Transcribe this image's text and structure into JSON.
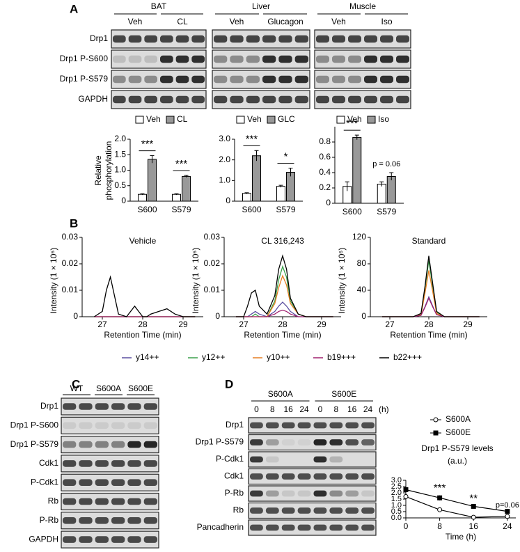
{
  "panel_labels": [
    "A",
    "B",
    "C",
    "D"
  ],
  "panel_a": {
    "blot": {
      "tissues": [
        {
          "name": "BAT",
          "conditions": [
            "Veh",
            "CL"
          ]
        },
        {
          "name": "Liver",
          "conditions": [
            "Veh",
            "Glucagon"
          ]
        },
        {
          "name": "Muscle",
          "conditions": [
            "Veh",
            "Iso"
          ]
        }
      ],
      "rows": [
        "Drp1",
        "Drp1 P-S600",
        "Drp1 P-S579",
        "GAPDH"
      ]
    },
    "y_label": "Relative phosphorylation",
    "charts": [
      {
        "type": "bar",
        "categories": [
          "S600",
          "S579"
        ],
        "series": [
          {
            "name": "Veh",
            "color": "#ffffff",
            "values": [
              0.22,
              0.22
            ],
            "errors": [
              0.02,
              0.02
            ]
          },
          {
            "name": "CL",
            "color": "#999999",
            "values": [
              1.35,
              0.8
            ],
            "errors": [
              0.12,
              0.03
            ]
          }
        ],
        "ylim": [
          0,
          2
        ],
        "yticks": [
          0,
          0.5,
          {
            "value": 1,
            "label": "1.0"
          },
          1.5,
          {
            "value": 2,
            "label": "2.0"
          }
        ],
        "annotations": [
          "***",
          "***"
        ]
      },
      {
        "type": "bar",
        "categories": [
          "S600",
          "S579"
        ],
        "series": [
          {
            "name": "Veh",
            "color": "#ffffff",
            "values": [
              0.38,
              0.72
            ],
            "errors": [
              0.03,
              0.05
            ]
          },
          {
            "name": "GLC",
            "color": "#999999",
            "values": [
              2.2,
              1.4
            ],
            "errors": [
              0.25,
              0.2
            ]
          }
        ],
        "ylim": [
          0,
          3
        ],
        "yticks": [
          0,
          {
            "value": 1,
            "label": "1.0"
          },
          {
            "value": 2,
            "label": "2.0"
          },
          {
            "value": 3,
            "label": "3.0"
          }
        ],
        "annotations": [
          "***",
          "*"
        ]
      },
      {
        "type": "bar",
        "categories": [
          "S600",
          "S579"
        ],
        "series": [
          {
            "name": "Veh",
            "color": "#ffffff",
            "values": [
              0.22,
              0.25
            ],
            "errors": [
              0.06,
              0.03
            ]
          },
          {
            "name": "Iso",
            "color": "#999999",
            "values": [
              0.86,
              0.35
            ],
            "errors": [
              0.03,
              0.05
            ]
          }
        ],
        "ylim": [
          0,
          1
        ],
        "yticks": [
          0,
          0.2,
          0.4,
          0.6,
          0.8
        ],
        "annotations": [
          "***",
          "p = 0.06"
        ]
      }
    ]
  },
  "panel_b": {
    "type": "line",
    "x_label": "Retention Time (min)",
    "y_label": "Intensity (1 × 10⁶)",
    "legend": [
      {
        "name": "y14++",
        "color": "#5b4ea0"
      },
      {
        "name": "y12++",
        "color": "#3aa04a"
      },
      {
        "name": "y10++",
        "color": "#e67e22"
      },
      {
        "name": "b19+++",
        "color": "#a0206e"
      },
      {
        "name": "b22+++",
        "color": "#000000"
      }
    ],
    "x": [
      26.8,
      27.0,
      27.1,
      27.2,
      27.3,
      27.4,
      27.6,
      27.8,
      27.9,
      28.0,
      28.1,
      28.2,
      28.4,
      28.6,
      28.8,
      29.0,
      29.3
    ],
    "xlim": [
      26.5,
      29.5
    ],
    "xticks": [
      27,
      28,
      29
    ],
    "charts": [
      {
        "title": "Vehicle",
        "ylim": [
          0,
          0.03
        ],
        "yticks": [
          0,
          0.01,
          0.02,
          0.03
        ],
        "values": [
          [
            0,
            0,
            0,
            0,
            0,
            0,
            0,
            0,
            0,
            0,
            0,
            0,
            0,
            0,
            0,
            0,
            0
          ],
          [
            0,
            0,
            0,
            0,
            0,
            0,
            0,
            0,
            0,
            0,
            0,
            0,
            0,
            0,
            0,
            0,
            0
          ],
          [
            0,
            0,
            0,
            0,
            0,
            0,
            0,
            0,
            0,
            0,
            0,
            0,
            0,
            0,
            0,
            0,
            0
          ],
          [
            0,
            0,
            0,
            0,
            0,
            0,
            0,
            0,
            0,
            0,
            0,
            0,
            0,
            0,
            0,
            0,
            0
          ],
          [
            0,
            0.002,
            0.01,
            0.015,
            0.008,
            0.001,
            0,
            0.004,
            0.002,
            0,
            0,
            0.001,
            0.002,
            0.003,
            0.001,
            0,
            0
          ]
        ]
      },
      {
        "title": "CL 316,243",
        "ylim": [
          0,
          0.03
        ],
        "yticks": [
          0,
          0.01,
          0.02,
          0.03
        ],
        "values": [
          [
            0,
            0,
            0,
            0.001,
            0.002,
            0.001,
            0,
            0.002,
            0.004,
            0.0055,
            0.004,
            0.002,
            0,
            0,
            0,
            0,
            0
          ],
          [
            0,
            0,
            0,
            0,
            0.001,
            0,
            0,
            0.006,
            0.014,
            0.019,
            0.015,
            0.006,
            0.001,
            0,
            0,
            0,
            0
          ],
          [
            0,
            0,
            0,
            0,
            0,
            0,
            0,
            0.005,
            0.011,
            0.0155,
            0.012,
            0.005,
            0.001,
            0,
            0,
            0,
            0
          ],
          [
            0,
            0,
            0,
            0,
            0,
            0,
            0,
            0.001,
            0.002,
            0.0025,
            0.002,
            0.001,
            0,
            0,
            0,
            0,
            0
          ],
          [
            0,
            0,
            0.004,
            0.009,
            0.01,
            0.004,
            0.001,
            0.008,
            0.018,
            0.023,
            0.018,
            0.007,
            0.001,
            0,
            0,
            0,
            0
          ]
        ]
      },
      {
        "title": "Standard",
        "ylim": [
          0,
          120
        ],
        "yticks": [
          0,
          40,
          80,
          120
        ],
        "values": [
          [
            0,
            0,
            0,
            0,
            0,
            0,
            0,
            2,
            15,
            30,
            16,
            3,
            0,
            0,
            0,
            0,
            0
          ],
          [
            0,
            0,
            0,
            0,
            0,
            0,
            0,
            4,
            42,
            85,
            46,
            7,
            0,
            0,
            0,
            0,
            0
          ],
          [
            0,
            0,
            0,
            0,
            0,
            0,
            0,
            3,
            35,
            70,
            38,
            5,
            0,
            0,
            0,
            0,
            0
          ],
          [
            0,
            0,
            0,
            0,
            0,
            0,
            0,
            2,
            14,
            28,
            15,
            3,
            0,
            0,
            0,
            0,
            0
          ],
          [
            0,
            0,
            0,
            0,
            0,
            0,
            0,
            5,
            45,
            92,
            50,
            8,
            0,
            0,
            0,
            0,
            0
          ]
        ]
      }
    ]
  },
  "panel_c": {
    "groups": [
      "WT",
      "S600A",
      "S600E"
    ],
    "rows": [
      "Drp1",
      "Drp1 P-S600",
      "Drp1 P-S579",
      "Cdk1",
      "P-Cdk1",
      "Rb",
      "P-Rb",
      "GAPDH"
    ]
  },
  "panel_d": {
    "groups": [
      "S600A",
      "S600E"
    ],
    "timepoints": [
      "0",
      "8",
      "16",
      "24",
      "0",
      "8",
      "16",
      "24"
    ],
    "time_unit": "(h)",
    "rows": [
      "Drp1",
      "Drp1 P-S579",
      "P-Cdk1",
      "Cdk1",
      "P-Rb",
      "Rb",
      "Pancadherin"
    ],
    "chart": {
      "type": "line",
      "title": "Drp1 P-S579 levels",
      "subtitle": "(a.u.)",
      "x_label": "Time (h)",
      "x": [
        0,
        8,
        16,
        24
      ],
      "xlim": [
        0,
        26
      ],
      "xticks": [
        0,
        8,
        16,
        24
      ],
      "ylim": [
        0,
        3
      ],
      "yticks": [
        {
          "value": 0,
          "label": "0.0"
        },
        0.5,
        {
          "value": 1,
          "label": "1.0"
        },
        1.5,
        {
          "value": 2,
          "label": "2.0"
        },
        2.5,
        {
          "value": 3,
          "label": "3.0"
        }
      ],
      "series": [
        {
          "name": "S600A",
          "color": "#000000",
          "marker": "open-circle",
          "values": [
            1.7,
            0.65,
            0.05,
            0.12
          ],
          "errors": [
            0.05,
            0.08,
            0.02,
            0.02
          ]
        },
        {
          "name": "S600E",
          "color": "#000000",
          "marker": "filled-square",
          "values": [
            2.25,
            1.6,
            0.92,
            0.52
          ],
          "errors": [
            0.15,
            0.2,
            0.05,
            0.03
          ]
        }
      ],
      "annotations": [
        null,
        "***",
        "**",
        "p=0.06"
      ]
    }
  }
}
